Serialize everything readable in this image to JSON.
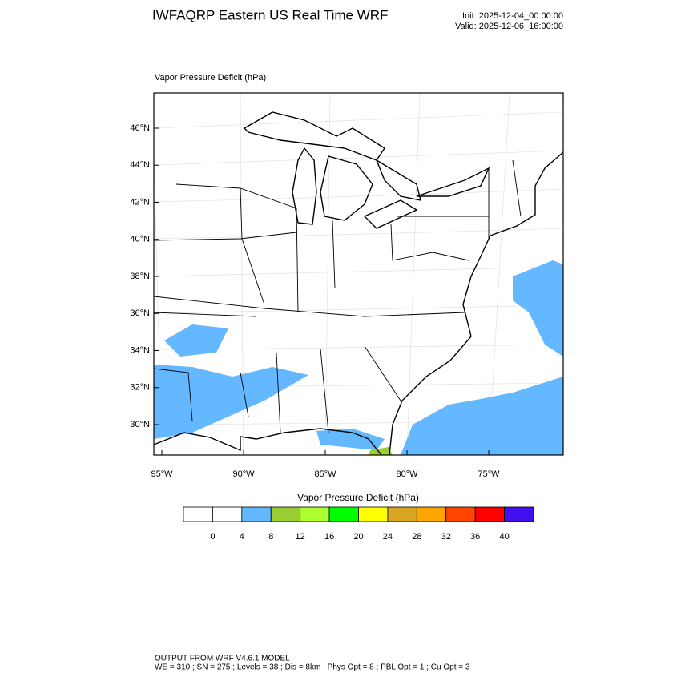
{
  "header": {
    "title": "IWFAQRP Eastern US Real Time WRF",
    "init": "Init: 2025-12-04_00:00:00",
    "valid": "Valid: 2025-12-06_16:00:00"
  },
  "map": {
    "label": "Vapor Pressure Deficit   (hPa)",
    "lat_labels": [
      "46°N",
      "44°N",
      "42°N",
      "40°N",
      "38°N",
      "36°N",
      "34°N",
      "32°N",
      "30°N"
    ],
    "lon_labels": [
      "95°W",
      "90°W",
      "85°W",
      "80°W",
      "75°W"
    ]
  },
  "colorbar": {
    "title": "Vapor Pressure Deficit  (hPa)",
    "levels": [
      0,
      4,
      8,
      12,
      16,
      20,
      24,
      28,
      32,
      36,
      40
    ],
    "colors": [
      "#ffffff",
      "#ffffff",
      "#63b8ff",
      "#9acd32",
      "#adff2f",
      "#00ff00",
      "#ffff00",
      "#daa520",
      "#ffa500",
      "#ff4500",
      "#ff0000",
      "#4010f0"
    ]
  },
  "footer": {
    "line1": "OUTPUT FROM WRF V4.6.1 MODEL",
    "line2": "WE = 310 ; SN = 275 ; Levels = 38 ; Dis = 8km ; Phys Opt = 8 ; PBL Opt = 1 ; Cu Opt = 3"
  }
}
